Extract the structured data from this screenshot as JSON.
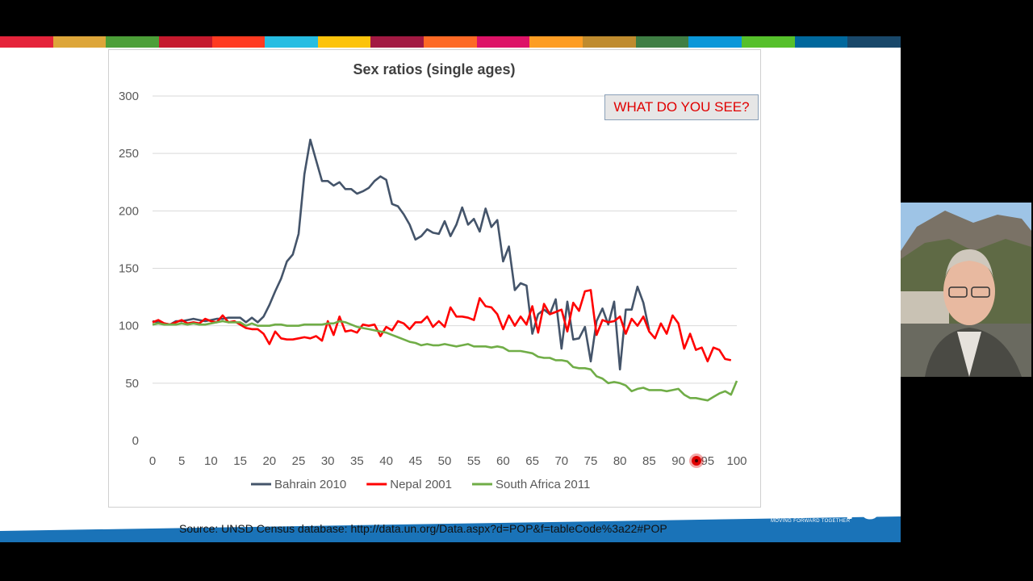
{
  "sdg_colors": [
    "#e5243b",
    "#dda63a",
    "#4c9f38",
    "#c5192d",
    "#ff3a21",
    "#26bde2",
    "#fcc30b",
    "#a21942",
    "#fd6925",
    "#dd1367",
    "#fd9d24",
    "#bf8b2e",
    "#3f7e44",
    "#0a97d9",
    "#56c02b",
    "#00689d",
    "#19486a"
  ],
  "chart_data": {
    "type": "line",
    "title": "Sex ratios (single ages)",
    "xlabel": "",
    "ylabel": "",
    "xlim": [
      0,
      100
    ],
    "ylim": [
      0,
      300
    ],
    "x_ticks": [
      0,
      5,
      10,
      15,
      20,
      25,
      30,
      35,
      40,
      45,
      50,
      55,
      60,
      65,
      70,
      75,
      80,
      85,
      90,
      95,
      100
    ],
    "y_ticks": [
      0,
      50,
      100,
      150,
      200,
      250,
      300
    ],
    "grid": "horizontal",
    "legend_position": "bottom",
    "series": [
      {
        "name": "Bahrain 2010",
        "color": "#44546a",
        "x_start": 0,
        "values": [
          104,
          103,
          102,
          101,
          104,
          104,
          105,
          106,
          105,
          104,
          105,
          106,
          106,
          107,
          107,
          107,
          103,
          107,
          103,
          108,
          118,
          130,
          141,
          156,
          162,
          180,
          232,
          262,
          244,
          226,
          226,
          222,
          225,
          219,
          219,
          215,
          217,
          220,
          226,
          230,
          227,
          206,
          204,
          197,
          188,
          175,
          178,
          184,
          181,
          180,
          191,
          178,
          188,
          203,
          188,
          193,
          182,
          202,
          186,
          192,
          156,
          169,
          131,
          137,
          135,
          93,
          110,
          114,
          110,
          123,
          80,
          121,
          88,
          89,
          99,
          69,
          104,
          115,
          101,
          121,
          62,
          114,
          114,
          134,
          120,
          96
        ]
      },
      {
        "name": "Nepal 2001",
        "color": "#ff0000",
        "x_start": 0,
        "values": [
          103,
          105,
          102,
          101,
          103,
          105,
          102,
          103,
          102,
          106,
          104,
          103,
          109,
          103,
          104,
          101,
          98,
          97,
          97,
          93,
          84,
          95,
          89,
          88,
          88,
          89,
          90,
          89,
          91,
          87,
          104,
          92,
          108,
          95,
          96,
          94,
          101,
          100,
          101,
          91,
          99,
          96,
          104,
          102,
          97,
          103,
          103,
          108,
          99,
          104,
          99,
          116,
          108,
          108,
          107,
          105,
          124,
          117,
          116,
          110,
          97,
          109,
          100,
          108,
          101,
          117,
          94,
          119,
          110,
          112,
          114,
          95,
          120,
          113,
          130,
          131,
          92,
          105,
          103,
          104,
          108,
          93,
          106,
          100,
          108,
          95,
          89,
          102,
          93,
          109,
          102,
          80,
          93,
          79,
          81,
          69,
          81,
          79,
          71,
          70
        ]
      },
      {
        "name": "South Africa 2011",
        "color": "#70ad47",
        "x_start": 0,
        "values": [
          101,
          102,
          101,
          101,
          101,
          102,
          101,
          102,
          101,
          101,
          102,
          103,
          104,
          103,
          103,
          103,
          100,
          102,
          100,
          100,
          100,
          101,
          101,
          100,
          100,
          100,
          101,
          101,
          101,
          101,
          102,
          102,
          104,
          103,
          101,
          99,
          98,
          97,
          96,
          95,
          94,
          92,
          90,
          88,
          86,
          85,
          83,
          84,
          83,
          83,
          84,
          83,
          82,
          83,
          84,
          82,
          82,
          82,
          81,
          82,
          81,
          78,
          78,
          78,
          77,
          76,
          73,
          72,
          72,
          70,
          70,
          69,
          64,
          63,
          63,
          62,
          56,
          54,
          50,
          51,
          50,
          48,
          43,
          45,
          46,
          44,
          44,
          44,
          43,
          44,
          45,
          40,
          37,
          37,
          36,
          35,
          38,
          41,
          43,
          40,
          52
        ]
      }
    ]
  },
  "callout_text": "WHAT DO YOU SEE?",
  "footer": {
    "source": "Source: UNSD Census database: http://data.un.org/Data.aspx?d=POP&f=tableCode%3a22#POP"
  },
  "logo": {
    "un": "UN",
    "word": "ESCAP",
    "number": "75",
    "tagline": "MOVING FORWARD TOGETHER",
    "footer_color": "#1a73b8"
  }
}
